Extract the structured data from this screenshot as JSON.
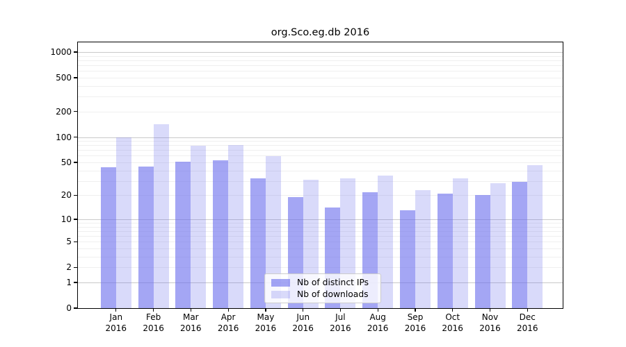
{
  "title": "org.Sco.eg.db 2016",
  "chart_data": {
    "type": "bar",
    "title": "org.Sco.eg.db 2016",
    "categories": [
      "Jan",
      "Feb",
      "Mar",
      "Apr",
      "May",
      "Jun",
      "Jul",
      "Aug",
      "Sep",
      "Oct",
      "Nov",
      "Dec"
    ],
    "year": "2016",
    "series": [
      {
        "name": "Nb of distinct IPs",
        "color": "#6c6fed",
        "opacity": 0.62,
        "values": [
          44,
          45,
          51,
          53,
          32,
          19,
          14,
          22,
          13,
          21,
          20,
          29
        ]
      },
      {
        "name": "Nb of downloads",
        "color": "#6c6fed",
        "opacity": 0.26,
        "values": [
          100,
          142,
          79,
          80,
          59,
          31,
          32,
          35,
          23,
          32,
          28,
          46
        ]
      }
    ],
    "xlabel": "",
    "ylabel": "",
    "yscale": "log1p",
    "ylim": [
      0,
      1300
    ],
    "yticks": [
      1000,
      500,
      200,
      100,
      50,
      20,
      10,
      5,
      2,
      1,
      0
    ],
    "grid": {
      "minor": [
        2,
        3,
        4,
        5,
        6,
        7,
        8,
        9,
        20,
        30,
        40,
        50,
        60,
        70,
        80,
        90,
        200,
        300,
        400,
        500,
        600,
        700,
        800,
        900
      ],
      "major": [
        1,
        10,
        100,
        1000
      ],
      "minor_color": "#efefef",
      "major_color": "#c9c9c9"
    },
    "legend": {
      "position": "lower center",
      "entries": [
        "Nb of distinct IPs",
        "Nb of downloads"
      ]
    }
  }
}
